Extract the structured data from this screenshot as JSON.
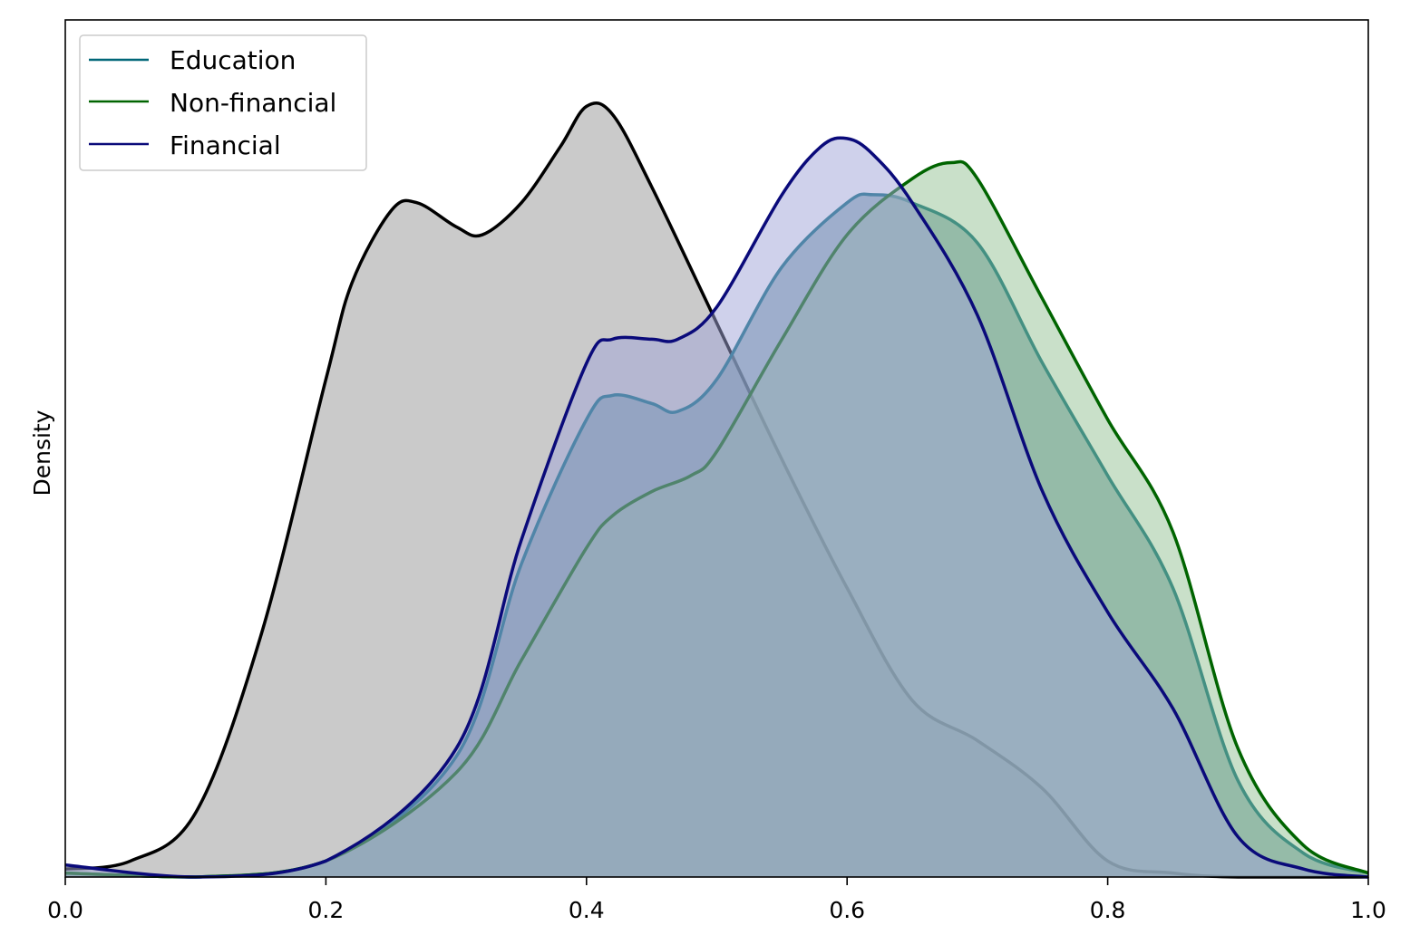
{
  "chart_data": {
    "type": "area",
    "title": "",
    "xlabel": "",
    "ylabel": "Density",
    "xlim": [
      0.0,
      1.0
    ],
    "ylim": [
      0,
      1
    ],
    "y_ticks_shown": false,
    "grid": false,
    "legend_placement": "top-left",
    "x_ticks": [
      "0.0",
      "0.2",
      "0.4",
      "0.6",
      "0.8",
      "1.0"
    ],
    "x_tick_values": [
      0.0,
      0.2,
      0.4,
      0.6,
      0.8,
      1.0
    ],
    "series": [
      {
        "name": "",
        "legend": false,
        "color": "#000000",
        "fill": "#a9a9a9",
        "fill_opacity": 0.62,
        "x": [
          0.0,
          0.05,
          0.1,
          0.15,
          0.2,
          0.22,
          0.25,
          0.27,
          0.3,
          0.32,
          0.35,
          0.38,
          0.4,
          0.42,
          0.45,
          0.5,
          0.55,
          0.6,
          0.65,
          0.7,
          0.75,
          0.8,
          0.85,
          0.9,
          1.0
        ],
        "y": [
          0.01,
          0.02,
          0.08,
          0.3,
          0.62,
          0.74,
          0.83,
          0.84,
          0.81,
          0.8,
          0.84,
          0.91,
          0.96,
          0.95,
          0.86,
          0.69,
          0.52,
          0.36,
          0.22,
          0.17,
          0.11,
          0.02,
          0.005,
          0.0,
          0.0
        ]
      },
      {
        "name": "Education",
        "legend": true,
        "color": "#006778",
        "fill": "#5f8e9a",
        "fill_opacity": 0.62,
        "x": [
          0.0,
          0.1,
          0.2,
          0.3,
          0.35,
          0.4,
          0.42,
          0.45,
          0.47,
          0.5,
          0.55,
          0.6,
          0.62,
          0.65,
          0.7,
          0.75,
          0.8,
          0.85,
          0.9,
          0.95,
          1.0
        ],
        "y": [
          0.005,
          0.0,
          0.02,
          0.15,
          0.39,
          0.57,
          0.6,
          0.59,
          0.58,
          0.62,
          0.76,
          0.84,
          0.85,
          0.84,
          0.79,
          0.64,
          0.5,
          0.36,
          0.12,
          0.03,
          0.005
        ]
      },
      {
        "name": "Non-financial",
        "legend": true,
        "color": "#006400",
        "fill": "#8fbf8f",
        "fill_opacity": 0.48,
        "x": [
          0.0,
          0.1,
          0.2,
          0.3,
          0.35,
          0.4,
          0.42,
          0.45,
          0.48,
          0.5,
          0.55,
          0.6,
          0.65,
          0.68,
          0.7,
          0.75,
          0.8,
          0.85,
          0.9,
          0.95,
          1.0
        ],
        "y": [
          0.005,
          0.0,
          0.02,
          0.13,
          0.27,
          0.41,
          0.45,
          0.48,
          0.5,
          0.53,
          0.67,
          0.8,
          0.87,
          0.89,
          0.87,
          0.72,
          0.57,
          0.43,
          0.16,
          0.04,
          0.005
        ]
      },
      {
        "name": "Financial",
        "legend": true,
        "color": "#0a0a7a",
        "fill": "#9fa3d8",
        "fill_opacity": 0.5,
        "x": [
          0.0,
          0.1,
          0.2,
          0.3,
          0.35,
          0.4,
          0.42,
          0.45,
          0.47,
          0.5,
          0.55,
          0.58,
          0.6,
          0.62,
          0.65,
          0.7,
          0.75,
          0.8,
          0.85,
          0.9,
          0.95,
          1.0
        ],
        "y": [
          0.015,
          0.0,
          0.02,
          0.16,
          0.42,
          0.64,
          0.67,
          0.67,
          0.67,
          0.71,
          0.85,
          0.91,
          0.92,
          0.9,
          0.84,
          0.7,
          0.48,
          0.33,
          0.21,
          0.05,
          0.01,
          0.0
        ]
      }
    ]
  }
}
